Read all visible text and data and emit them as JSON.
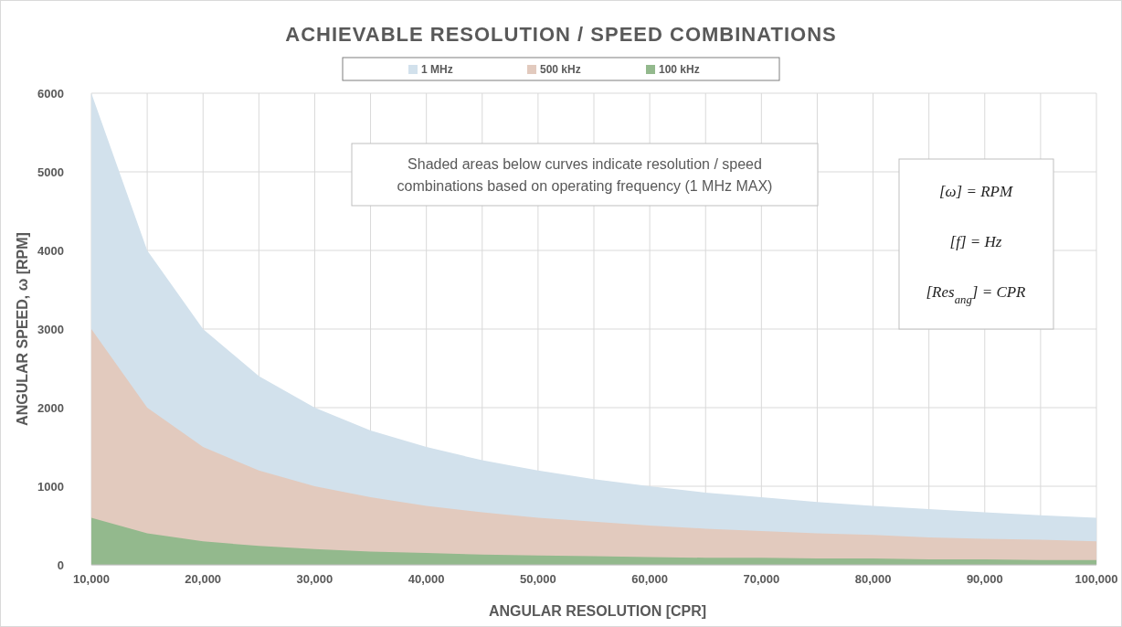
{
  "chart_data": {
    "type": "area",
    "title": "ACHIEVABLE RESOLUTION / SPEED COMBINATIONS",
    "xlabel": "ANGULAR RESOLUTION [CPR]",
    "ylabel": "ANGULAR SPEED, ω [RPM]",
    "x": [
      10000,
      15000,
      20000,
      25000,
      30000,
      35000,
      40000,
      45000,
      50000,
      55000,
      60000,
      65000,
      70000,
      75000,
      80000,
      85000,
      90000,
      95000,
      100000
    ],
    "series": [
      {
        "name": "1 MHz",
        "color": "#d2e1ec",
        "values": [
          6000,
          4000,
          3000,
          2400,
          2000,
          1710,
          1500,
          1330,
          1200,
          1090,
          1000,
          920,
          860,
          800,
          750,
          710,
          670,
          630,
          600
        ]
      },
      {
        "name": "500 kHz",
        "color": "#e2cabe",
        "values": [
          3000,
          2000,
          1500,
          1200,
          1000,
          860,
          750,
          670,
          600,
          550,
          500,
          460,
          430,
          400,
          380,
          350,
          330,
          320,
          300
        ]
      },
      {
        "name": "100 kHz",
        "color": "#93b98d",
        "values": [
          600,
          400,
          300,
          240,
          200,
          170,
          150,
          130,
          120,
          110,
          100,
          90,
          90,
          80,
          80,
          70,
          70,
          60,
          60
        ]
      }
    ],
    "xlim": [
      10000,
      100000
    ],
    "xticks": [
      {
        "value": 10000,
        "label": "10,000"
      },
      {
        "value": 15000,
        "label": null
      },
      {
        "value": 20000,
        "label": "20,000"
      },
      {
        "value": 25000,
        "label": null
      },
      {
        "value": 30000,
        "label": "30,000"
      },
      {
        "value": 35000,
        "label": null
      },
      {
        "value": 40000,
        "label": "40,000"
      },
      {
        "value": 45000,
        "label": null
      },
      {
        "value": 50000,
        "label": "50,000"
      },
      {
        "value": 55000,
        "label": null
      },
      {
        "value": 60000,
        "label": "60,000"
      },
      {
        "value": 65000,
        "label": null
      },
      {
        "value": 70000,
        "label": "70,000"
      },
      {
        "value": 75000,
        "label": null
      },
      {
        "value": 80000,
        "label": "80,000"
      },
      {
        "value": 85000,
        "label": null
      },
      {
        "value": 90000,
        "label": "90,000"
      },
      {
        "value": 95000,
        "label": null
      },
      {
        "value": 100000,
        "label": "100,000"
      }
    ],
    "ylim": [
      0,
      6000
    ],
    "yticks": [
      0,
      1000,
      2000,
      3000,
      4000,
      5000,
      6000
    ],
    "grid": true,
    "legend": "top",
    "annotations": [
      "Shaded areas below curves indicate resolution / speed combinations based on operating frequency (1 MHz MAX)",
      "[ω] = RPM",
      "[f] = Hz",
      "[Res$_{ang}$] = CPR"
    ]
  }
}
